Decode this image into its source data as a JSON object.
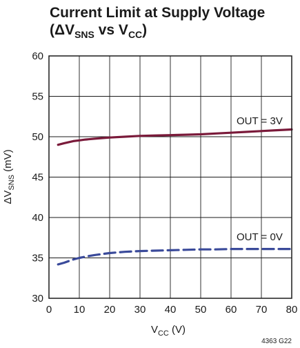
{
  "chart_data": {
    "type": "line",
    "title_main": "Current Limit at Supply Voltage",
    "title_open": "(ΔV",
    "title_sub1": "SNS",
    "title_mid": " vs V",
    "title_sub2": "CC",
    "title_close": ")",
    "xlabel_main": "V",
    "xlabel_sub": "CC",
    "xlabel_unit": " (V)",
    "ylabel_main": "ΔV",
    "ylabel_sub": "SNS",
    "ylabel_unit": " (mV)",
    "xlim": [
      0,
      80
    ],
    "ylim": [
      30,
      60
    ],
    "x_ticks": [
      0,
      10,
      20,
      30,
      40,
      50,
      60,
      70,
      80
    ],
    "y_ticks": [
      30,
      35,
      40,
      45,
      50,
      55,
      60
    ],
    "grid": true,
    "series": [
      {
        "name": "OUT = 3V",
        "color": "#7a1a3a",
        "style": "solid",
        "x": [
          3,
          5,
          8,
          10,
          12,
          15,
          20,
          25,
          30,
          35,
          40,
          45,
          50,
          55,
          60,
          65,
          70,
          75,
          80
        ],
        "y": [
          49.0,
          49.2,
          49.45,
          49.55,
          49.65,
          49.75,
          49.9,
          50.0,
          50.1,
          50.15,
          50.2,
          50.25,
          50.3,
          50.4,
          50.5,
          50.6,
          50.7,
          50.8,
          50.9
        ]
      },
      {
        "name": "OUT = 0V",
        "color": "#3a4a9a",
        "style": "dashed",
        "x": [
          3,
          5,
          8,
          10,
          12,
          15,
          20,
          25,
          30,
          35,
          40,
          45,
          50,
          55,
          60,
          65,
          70,
          75,
          80
        ],
        "y": [
          34.2,
          34.4,
          34.8,
          35.0,
          35.15,
          35.35,
          35.6,
          35.75,
          35.85,
          35.9,
          35.95,
          36.0,
          36.05,
          36.05,
          36.1,
          36.1,
          36.1,
          36.1,
          36.1
        ]
      }
    ],
    "annotations": [
      "OUT = 3V",
      "OUT = 0V"
    ],
    "figure_id": "4363 G22"
  }
}
